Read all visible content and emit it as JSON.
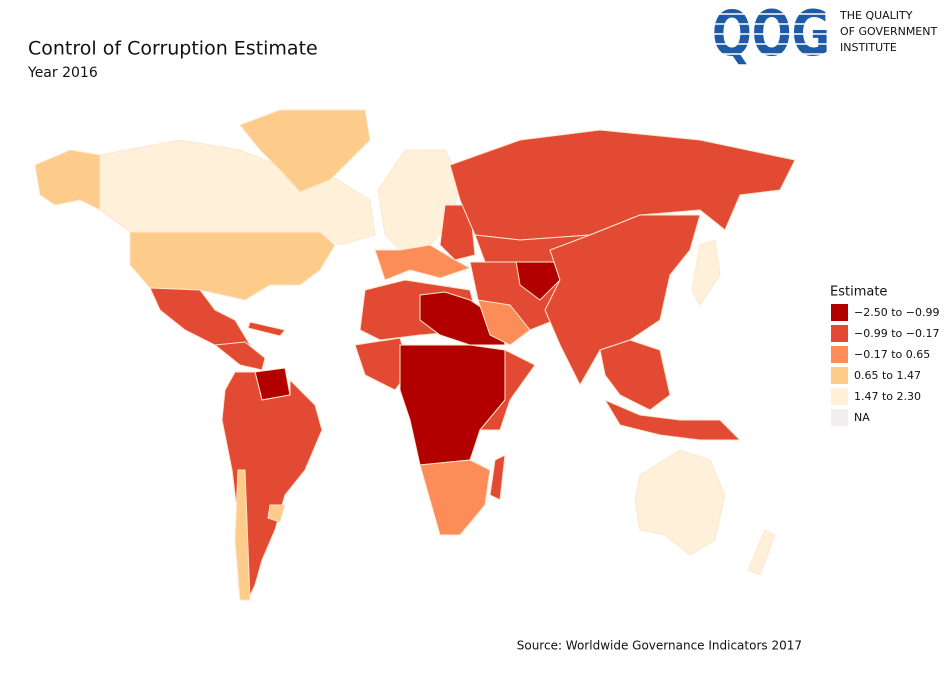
{
  "header": {
    "title": "Control of Corruption Estimate",
    "subtitle": "Year 2016"
  },
  "logo": {
    "mark": "QOG",
    "lines": [
      "THE QUALITY",
      "OF GOVERNMENT",
      "INSTITUTE"
    ]
  },
  "legend": {
    "title": "Estimate",
    "items": [
      {
        "label": "−2.50 to −0.99",
        "color": "#b20000"
      },
      {
        "label": "−0.99 to −0.17",
        "color": "#e34a33"
      },
      {
        "label": "−0.17 to 0.65",
        "color": "#fc8d59"
      },
      {
        "label": "0.65 to 1.47",
        "color": "#fdcc8a"
      },
      {
        "label": "1.47 to 2.30",
        "color": "#fef0d9"
      },
      {
        "label": "NA",
        "color": "#f2eeee"
      }
    ]
  },
  "source": "Source: Worldwide Governance Indicators 2017"
}
